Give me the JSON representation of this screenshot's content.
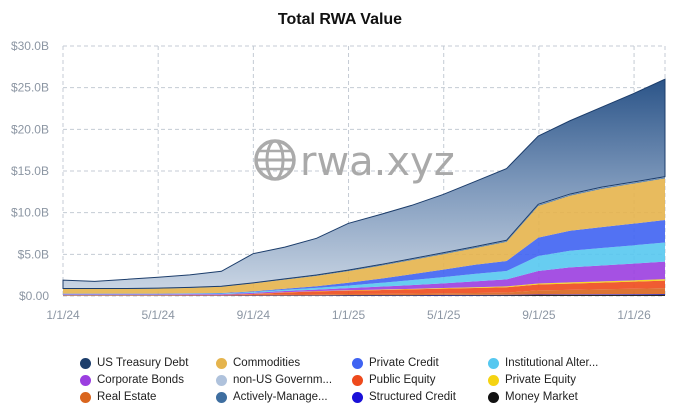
{
  "chart_data": {
    "type": "area",
    "stacked": true,
    "title": "Total RWA Value",
    "watermark": "rwa.xyz",
    "xlabel": "",
    "ylabel": "",
    "ylim": [
      0,
      30
    ],
    "y_unit": "billions USD",
    "y_ticks": [
      "$0.00",
      "$5.0B",
      "$10.0B",
      "$15.0B",
      "$20.0B",
      "$25.0B",
      "$30.0B"
    ],
    "x_ticks": [
      "1/1/24",
      "5/1/24",
      "9/1/24",
      "1/1/25",
      "5/1/25",
      "9/1/25",
      "1/1/26"
    ],
    "grid": true,
    "x": [
      "1/1/24",
      "3/1/24",
      "5/1/24",
      "7/1/24",
      "9/1/24",
      "11/1/24",
      "1/1/25",
      "2/1/25",
      "3/1/25",
      "4/1/25",
      "5/1/25",
      "6/1/25",
      "7/1/25",
      "8/1/25",
      "9/1/25",
      "10/1/25",
      "11/1/25",
      "12/1/25",
      "1/1/26",
      "2/10/26"
    ],
    "series": [
      {
        "name": "Money Market",
        "color": "#111111",
        "values": [
          0.02,
          0.02,
          0.02,
          0.02,
          0.02,
          0.02,
          0.03,
          0.04,
          0.05,
          0.06,
          0.06,
          0.07,
          0.08,
          0.09,
          0.1,
          0.12,
          0.13,
          0.14,
          0.15,
          0.16
        ]
      },
      {
        "name": "Structured Credit",
        "color": "#1a10d8",
        "values": [
          0.02,
          0.02,
          0.02,
          0.02,
          0.02,
          0.02,
          0.03,
          0.03,
          0.03,
          0.04,
          0.04,
          0.04,
          0.05,
          0.05,
          0.05,
          0.06,
          0.06,
          0.07,
          0.07,
          0.08
        ]
      },
      {
        "name": "Real Estate",
        "color": "#d9651e",
        "values": [
          0.05,
          0.05,
          0.05,
          0.05,
          0.06,
          0.06,
          0.08,
          0.1,
          0.12,
          0.14,
          0.16,
          0.18,
          0.2,
          0.22,
          0.25,
          0.5,
          0.55,
          0.6,
          0.65,
          0.7
        ]
      },
      {
        "name": "Public Equity",
        "color": "#ee4a1c",
        "values": [
          0.02,
          0.02,
          0.02,
          0.02,
          0.02,
          0.02,
          0.1,
          0.25,
          0.35,
          0.4,
          0.45,
          0.5,
          0.55,
          0.6,
          0.65,
          0.7,
          0.75,
          0.8,
          0.85,
          0.9
        ]
      },
      {
        "name": "Private Equity",
        "color": "#f5d312",
        "values": [
          0.01,
          0.01,
          0.01,
          0.01,
          0.01,
          0.01,
          0.02,
          0.03,
          0.04,
          0.05,
          0.06,
          0.07,
          0.08,
          0.09,
          0.1,
          0.12,
          0.14,
          0.15,
          0.16,
          0.18
        ]
      },
      {
        "name": "Corporate Bonds",
        "color": "#9b3ee0",
        "values": [
          0.08,
          0.08,
          0.08,
          0.08,
          0.09,
          0.1,
          0.12,
          0.15,
          0.18,
          0.25,
          0.35,
          0.45,
          0.55,
          0.7,
          0.85,
          1.5,
          1.8,
          1.9,
          2.0,
          2.1
        ]
      },
      {
        "name": "Institutional Alternative Funds",
        "color": "#56c8f0",
        "values": [
          0.05,
          0.05,
          0.05,
          0.05,
          0.06,
          0.07,
          0.1,
          0.15,
          0.2,
          0.3,
          0.45,
          0.6,
          0.75,
          0.9,
          1.0,
          1.8,
          2.0,
          2.1,
          2.2,
          2.3
        ]
      },
      {
        "name": "Private Credit",
        "color": "#3f63f2",
        "values": [
          0.04,
          0.04,
          0.04,
          0.04,
          0.05,
          0.06,
          0.08,
          0.12,
          0.2,
          0.35,
          0.5,
          0.7,
          0.9,
          1.1,
          1.2,
          2.2,
          2.4,
          2.5,
          2.6,
          2.7
        ]
      },
      {
        "name": "Commodities",
        "color": "#e5b44d",
        "values": [
          0.55,
          0.55,
          0.55,
          0.6,
          0.65,
          0.75,
          0.95,
          1.1,
          1.25,
          1.4,
          1.55,
          1.7,
          1.85,
          2.0,
          2.3,
          3.8,
          4.2,
          4.6,
          4.8,
          5.0
        ]
      },
      {
        "name": "Actively-Managed Strategies",
        "color": "#3e6ea0",
        "values": [
          0.05,
          0.05,
          0.05,
          0.05,
          0.05,
          0.05,
          0.05,
          0.06,
          0.06,
          0.07,
          0.08,
          0.09,
          0.1,
          0.1,
          0.1,
          0.1,
          0.1,
          0.1,
          0.1,
          0.1
        ]
      },
      {
        "name": "non-US Government Debt",
        "color": "#afc2dc",
        "values": [
          0.01,
          0.01,
          0.01,
          0.01,
          0.01,
          0.01,
          0.02,
          0.03,
          0.04,
          0.05,
          0.06,
          0.07,
          0.08,
          0.08,
          0.09,
          0.1,
          0.1,
          0.1,
          0.1,
          0.1
        ]
      },
      {
        "name": "US Treasury Debt",
        "color": "#1c3d6b",
        "values": [
          1.0,
          0.85,
          1.1,
          1.3,
          1.5,
          1.8,
          3.5,
          3.8,
          4.4,
          5.6,
          6.0,
          6.4,
          7.0,
          7.8,
          8.6,
          8.2,
          8.8,
          9.6,
          10.6,
          11.7
        ]
      }
    ]
  },
  "legend": [
    {
      "label": "US Treasury Debt",
      "color": "#1c3d6b"
    },
    {
      "label": "Commodities",
      "color": "#e5b44d"
    },
    {
      "label": "Private Credit",
      "color": "#3f63f2"
    },
    {
      "label": "Institutional Alter...",
      "color": "#56c8f0"
    },
    {
      "label": "Corporate Bonds",
      "color": "#9b3ee0"
    },
    {
      "label": "non-US Governm...",
      "color": "#afc2dc"
    },
    {
      "label": "Public Equity",
      "color": "#ee4a1c"
    },
    {
      "label": "Private Equity",
      "color": "#f5d312"
    },
    {
      "label": "Real Estate",
      "color": "#d9651e"
    },
    {
      "label": "Actively-Manage...",
      "color": "#3e6ea0"
    },
    {
      "label": "Structured Credit",
      "color": "#1a10d8"
    },
    {
      "label": "Money Market",
      "color": "#111111"
    }
  ]
}
